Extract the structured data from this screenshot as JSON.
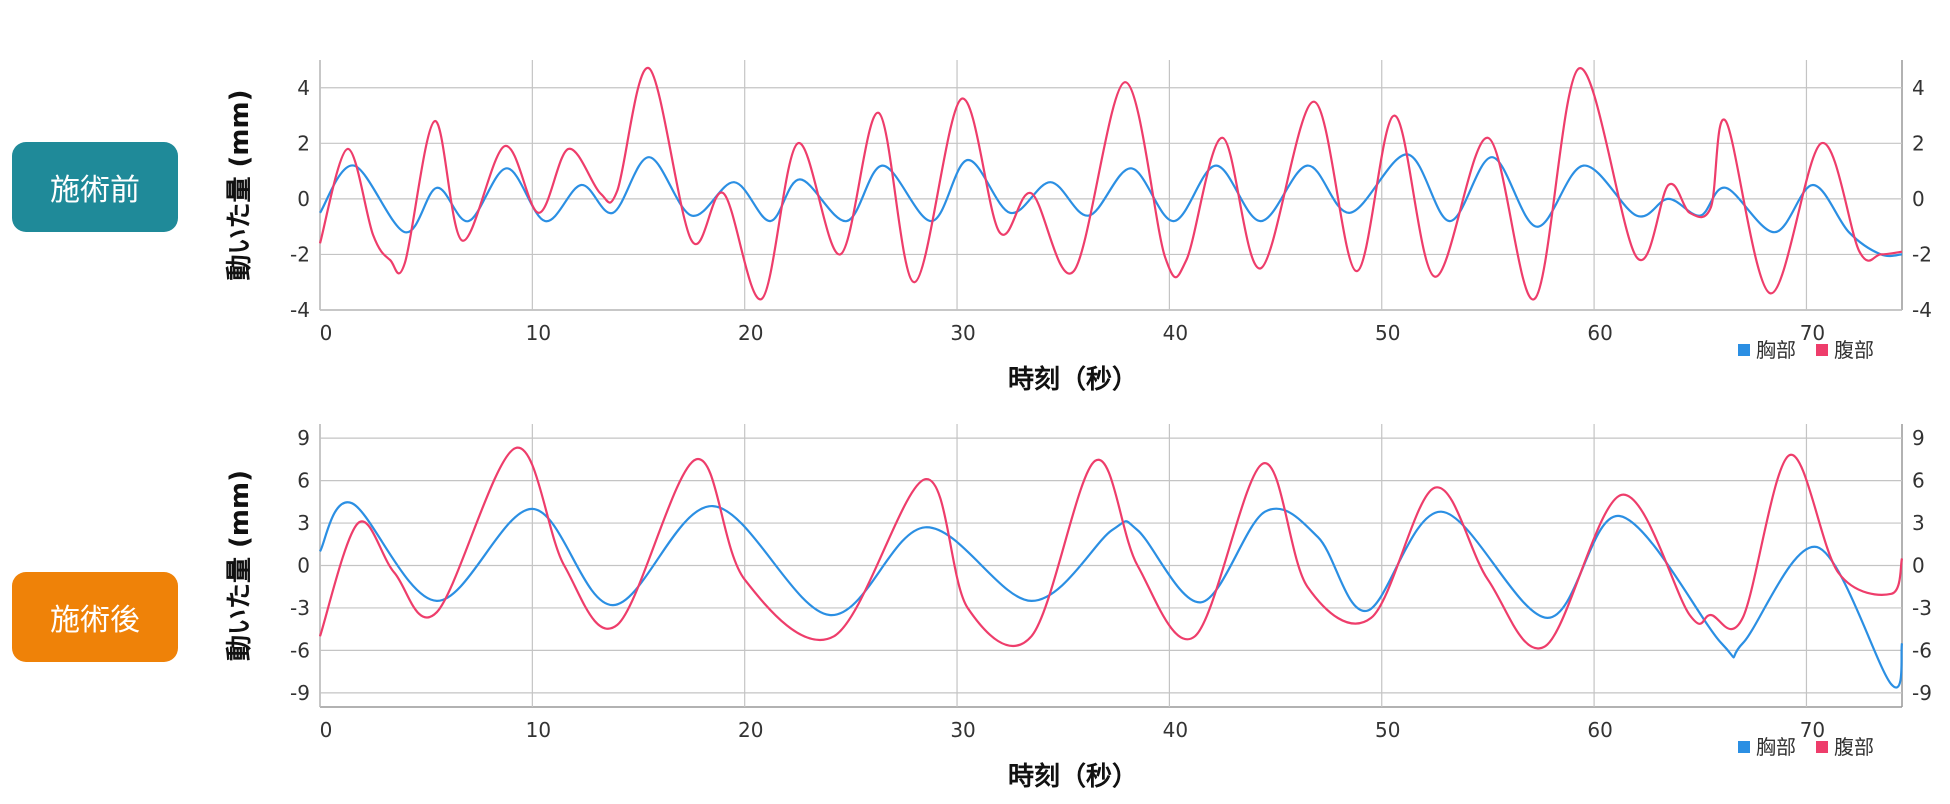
{
  "labels": {
    "before": "施術前",
    "after": "施術後"
  },
  "colors": {
    "before_badge": "#1f8a99",
    "after_badge": "#ef8208",
    "chest": "#2b8fe3",
    "abdomen": "#ee3d6b"
  },
  "chart_data": [
    {
      "type": "line",
      "xlabel": "時刻（秒）",
      "ylabel": "動いた量 (mm)",
      "xlim": [
        0,
        74.5
      ],
      "ylim": [
        -4,
        5
      ],
      "xticks": [
        0,
        10,
        20,
        30,
        40,
        50,
        60,
        70
      ],
      "yticks": [
        -4,
        -2,
        0,
        2,
        4
      ],
      "grid": true,
      "legend": "bottom-right",
      "series": [
        {
          "name": "胸部",
          "color": "#2b8fe3",
          "x": [
            0,
            1.6,
            4,
            5.5,
            7,
            8.8,
            10.6,
            12.3,
            13.8,
            15.5,
            17.5,
            19.5,
            21.2,
            22.6,
            24.8,
            26.5,
            28.8,
            30.5,
            32.5,
            34.4,
            36.2,
            38.2,
            40.2,
            42.2,
            44.3,
            46.5,
            48.5,
            51.2,
            53.2,
            55.2,
            57.3,
            59.5,
            62,
            63.5,
            65,
            66.2,
            68.5,
            70.3,
            72,
            73.5,
            74.5
          ],
          "y": [
            -0.5,
            1.2,
            -1.2,
            0.4,
            -0.8,
            1.1,
            -0.8,
            0.5,
            -0.5,
            1.5,
            -0.6,
            0.6,
            -0.8,
            0.7,
            -0.8,
            1.2,
            -0.8,
            1.4,
            -0.5,
            0.6,
            -0.6,
            1.1,
            -0.8,
            1.2,
            -0.8,
            1.2,
            -0.5,
            1.6,
            -0.8,
            1.5,
            -1,
            1.2,
            -0.6,
            0,
            -0.6,
            0.4,
            -1.2,
            0.5,
            -1.2,
            -2,
            -2
          ]
        },
        {
          "name": "腹部",
          "color": "#ee3d6b",
          "x": [
            0,
            1.3,
            2.5,
            3.3,
            4,
            5.4,
            6.7,
            8.7,
            10.3,
            11.7,
            13.2,
            14,
            15.5,
            17.5,
            19,
            20.8,
            22.5,
            24.5,
            26.3,
            28,
            30.2,
            32,
            33.5,
            35.5,
            37.9,
            39.8,
            40.8,
            42.5,
            44.3,
            46.8,
            48.8,
            50.6,
            52.5,
            55,
            57.2,
            59.3,
            62,
            63.5,
            64.5,
            65.5,
            66.2,
            68.3,
            70.7,
            72.5,
            73.5,
            74.5
          ],
          "y": [
            -1.6,
            1.8,
            -1.3,
            -2.2,
            -2.3,
            2.8,
            -1.5,
            1.9,
            -0.5,
            1.8,
            0.2,
            0.3,
            4.7,
            -1.5,
            0.2,
            -3.6,
            2,
            -2,
            3.1,
            -3,
            3.6,
            -1.2,
            0.2,
            -2.6,
            4.2,
            -2.1,
            -2.2,
            2.2,
            -2.5,
            3.5,
            -2.6,
            3,
            -2.8,
            2.2,
            -3.6,
            4.7,
            -2.1,
            0.5,
            -0.5,
            -0.3,
            2.8,
            -3.4,
            2,
            -1.9,
            -2,
            -1.9
          ]
        }
      ]
    },
    {
      "type": "line",
      "xlabel": "時刻（秒）",
      "ylabel": "動いた量 (mm)",
      "xlim": [
        0,
        74.5
      ],
      "ylim": [
        -10,
        10
      ],
      "xticks": [
        0,
        10,
        20,
        30,
        40,
        50,
        60,
        70
      ],
      "yticks": [
        -9,
        -6,
        -3,
        0,
        3,
        6,
        9
      ],
      "grid": true,
      "legend": "bottom-right",
      "series": [
        {
          "name": "胸部",
          "color": "#2b8fe3",
          "x": [
            0,
            1.5,
            5.5,
            10,
            13.8,
            18.5,
            24,
            28.5,
            33.5,
            37.3,
            38.5,
            41.5,
            44.5,
            47,
            49.3,
            52.8,
            57.8,
            61.2,
            66,
            67,
            70.5,
            74,
            74.5
          ],
          "y": [
            1,
            4.4,
            -2.5,
            4,
            -2.8,
            4.2,
            -3.5,
            2.7,
            -2.5,
            2.5,
            2.5,
            -2.6,
            3.8,
            2,
            -3.2,
            3.8,
            -3.7,
            3.5,
            -5.5,
            -5.5,
            1.3,
            -8.4,
            -5.5
          ]
        },
        {
          "name": "腹部",
          "color": "#ee3d6b",
          "x": [
            0,
            1.8,
            3.5,
            5.5,
            9.2,
            11.5,
            14,
            17.7,
            20,
            24.2,
            28.5,
            30.5,
            33.5,
            36.5,
            38.5,
            41.2,
            44.4,
            46.5,
            49.5,
            52.5,
            55,
            57.7,
            61.3,
            64.5,
            65.5,
            67,
            69.2,
            71.5,
            74,
            74.5
          ],
          "y": [
            -5,
            3,
            -0.5,
            -3.3,
            8.3,
            0,
            -4.2,
            7.5,
            -1,
            -5,
            6.1,
            -3,
            -5,
            7.4,
            0,
            -5,
            7.2,
            -1.5,
            -3.7,
            5.5,
            -1,
            -5.7,
            5,
            -3.5,
            -3.5,
            -3.7,
            7.8,
            -0.5,
            -2,
            0.5
          ]
        }
      ]
    }
  ]
}
